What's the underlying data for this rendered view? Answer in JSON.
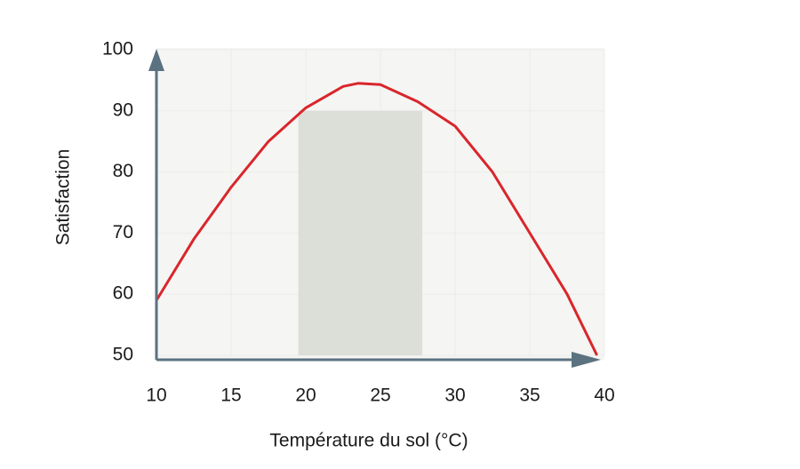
{
  "chart_data": {
    "type": "line",
    "xlabel": "Température du sol (°C)",
    "ylabel": "Satisfaction",
    "x": [
      10,
      12.5,
      15,
      17.5,
      20,
      22.5,
      23.5,
      25,
      27.5,
      30,
      32.5,
      35,
      37.5,
      39.5
    ],
    "values": [
      59,
      69,
      77.5,
      85,
      90.5,
      94,
      94.5,
      94.3,
      91.5,
      87.5,
      80,
      70,
      60,
      50
    ],
    "color": "#d9262b",
    "band": {
      "x": [
        19.5,
        27.8
      ],
      "y": [
        50,
        90
      ],
      "color": "#dcdfd8"
    },
    "xlim": [
      10,
      40
    ],
    "xticks": [
      10,
      15,
      20,
      25,
      30,
      35,
      40
    ],
    "ylim": [
      50,
      100
    ],
    "yticks": [
      50,
      60,
      70,
      80,
      90,
      100
    ],
    "grid": true
  }
}
